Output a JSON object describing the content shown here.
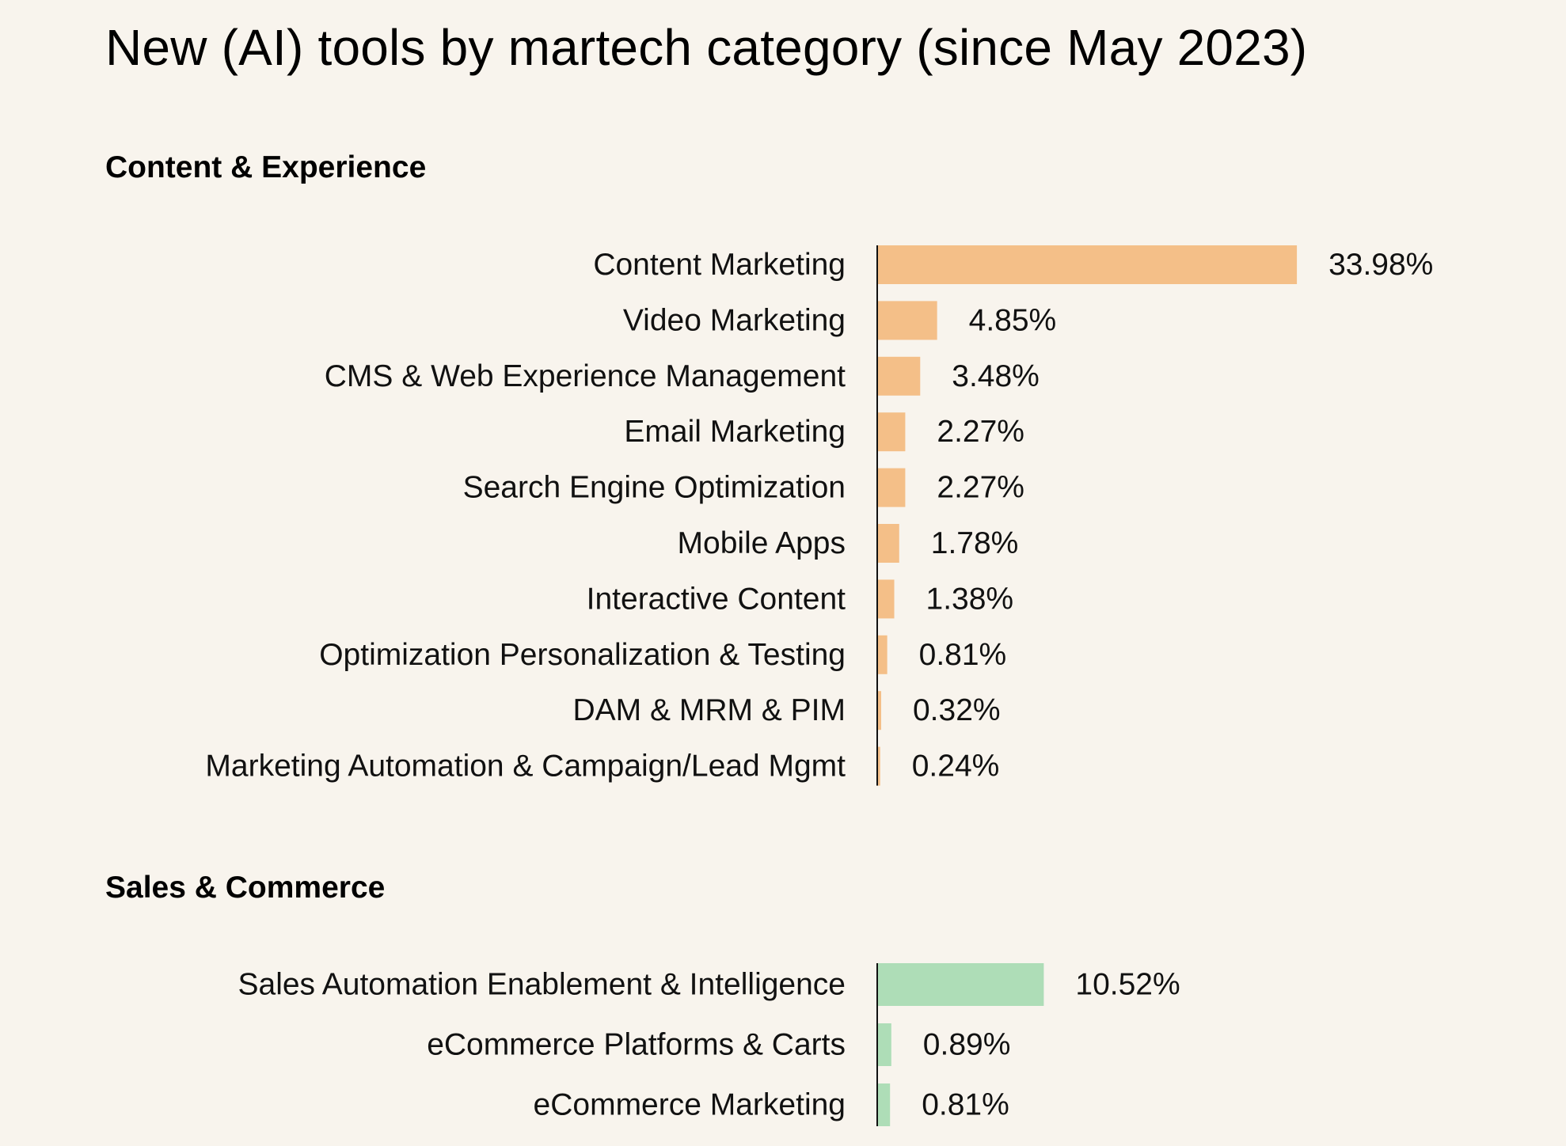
{
  "title": "New (AI) tools by martech category (since May 2023)",
  "colors": {
    "background": "#F8F4ED",
    "content_bar": "#F4BF88",
    "sales_bar": "#AEDDB7",
    "axis": "#111111",
    "text": "#111111"
  },
  "chart_data": [
    {
      "type": "bar",
      "orientation": "horizontal",
      "title": "Content & Experience",
      "xlabel": "",
      "ylabel": "",
      "value_format": "percent",
      "categories": [
        "Content Marketing",
        "Video Marketing",
        "CMS & Web Experience Management",
        "Email Marketing",
        "Search Engine Optimization",
        "Mobile Apps",
        "Interactive Content",
        "Optimization Personalization & Testing",
        "DAM & MRM & PIM",
        "Marketing Automation & Campaign/Lead Mgmt"
      ],
      "values": [
        33.98,
        4.85,
        3.48,
        2.27,
        2.27,
        1.78,
        1.38,
        0.81,
        0.32,
        0.24
      ],
      "value_labels": [
        "33.98%",
        "4.85%",
        "3.48%",
        "2.27%",
        "2.27%",
        "1.78%",
        "1.38%",
        "0.81%",
        "0.32%",
        "0.24%"
      ],
      "xlim": [
        0,
        34
      ],
      "grid": false,
      "legend": "none",
      "color": "#F4BF88"
    },
    {
      "type": "bar",
      "orientation": "horizontal",
      "title": "Sales & Commerce",
      "xlabel": "",
      "ylabel": "",
      "value_format": "percent",
      "categories": [
        "Sales Automation Enablement & Intelligence",
        "eCommerce Platforms & Carts",
        "eCommerce Marketing"
      ],
      "values": [
        10.52,
        0.89,
        0.81
      ],
      "value_labels": [
        "10.52%",
        "0.89%",
        "0.81%"
      ],
      "xlim": [
        0,
        10.52
      ],
      "grid": false,
      "legend": "none",
      "color": "#AEDDB7"
    }
  ]
}
